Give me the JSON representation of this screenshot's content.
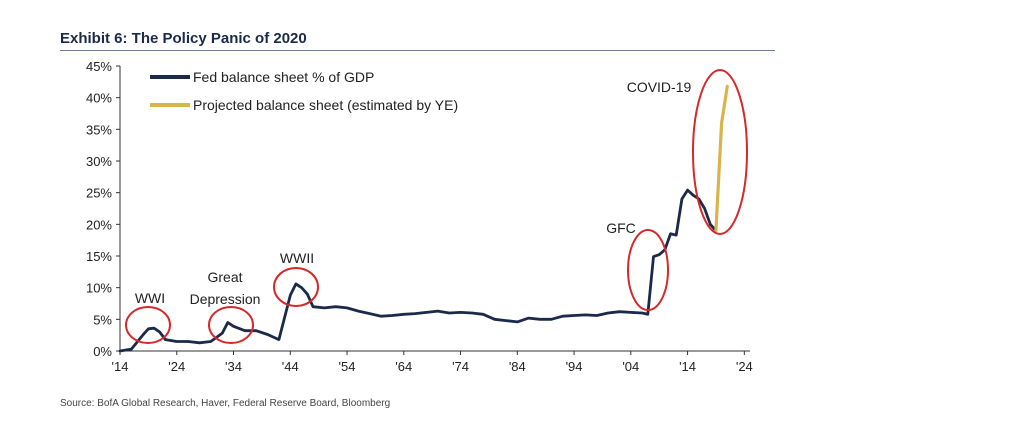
{
  "title": "Exhibit 6: The Policy Panic of 2020",
  "source": "Source: BofA Global Research, Haver, Federal Reserve Board, Bloomberg",
  "colors": {
    "actual": "#1b2a4a",
    "projected": "#d9b44a",
    "circle": "#d42a2a",
    "axis": "#333333"
  },
  "chart_data": {
    "type": "line",
    "title": "Exhibit 6: The Policy Panic of 2020",
    "xlabel": "",
    "ylabel": "",
    "xlim": [
      1914,
      2025
    ],
    "ylim": [
      0,
      45
    ],
    "y_ticks": [
      "0%",
      "5%",
      "10%",
      "15%",
      "20%",
      "25%",
      "30%",
      "35%",
      "40%",
      "45%"
    ],
    "y_tick_values": [
      0,
      5,
      10,
      15,
      20,
      25,
      30,
      35,
      40,
      45
    ],
    "x_ticks": [
      "'14",
      "'24",
      "'34",
      "'44",
      "'54",
      "'64",
      "'74",
      "'84",
      "'94",
      "'04",
      "'14",
      "'24"
    ],
    "x_tick_values": [
      1914,
      1924,
      1934,
      1944,
      1954,
      1964,
      1974,
      1984,
      1994,
      2004,
      2014,
      2024
    ],
    "grid": false,
    "legend_position": "top-left",
    "series": [
      {
        "name": "Fed balance sheet % of GDP",
        "x": [
          1914,
          1916,
          1918,
          1919,
          1920,
          1921,
          1922,
          1924,
          1926,
          1928,
          1930,
          1932,
          1933,
          1934,
          1936,
          1938,
          1940,
          1942,
          1944,
          1945,
          1946,
          1947,
          1948,
          1950,
          1952,
          1954,
          1956,
          1958,
          1960,
          1962,
          1964,
          1966,
          1968,
          1970,
          1972,
          1974,
          1976,
          1978,
          1980,
          1982,
          1984,
          1986,
          1988,
          1990,
          1992,
          1994,
          1996,
          1998,
          2000,
          2002,
          2004,
          2006,
          2007,
          2008,
          2009,
          2010,
          2011,
          2012,
          2013,
          2014,
          2015,
          2016,
          2017,
          2018,
          2019
        ],
        "y": [
          0,
          0.3,
          2.5,
          3.5,
          3.6,
          3.0,
          1.8,
          1.5,
          1.5,
          1.3,
          1.5,
          2.8,
          4.5,
          3.9,
          3.2,
          3.2,
          2.6,
          1.8,
          8.8,
          10.6,
          10.0,
          9.0,
          7.0,
          6.8,
          7.0,
          6.8,
          6.3,
          5.9,
          5.5,
          5.6,
          5.8,
          5.9,
          6.1,
          6.3,
          6.0,
          6.1,
          6.0,
          5.8,
          5.0,
          4.8,
          4.6,
          5.2,
          5.0,
          5.0,
          5.5,
          5.6,
          5.7,
          5.6,
          6.0,
          6.2,
          6.1,
          6.0,
          5.8,
          14.9,
          15.2,
          16.0,
          18.5,
          18.3,
          24.0,
          25.4,
          24.6,
          24.0,
          22.5,
          20.0,
          19.0
        ]
      },
      {
        "name": "Projected balance sheet (estimated by YE)",
        "x": [
          2019,
          2020,
          2021
        ],
        "y": [
          19.0,
          36.0,
          41.8
        ]
      }
    ],
    "annotations": [
      {
        "label": "WWI",
        "x": 1919,
        "y": 3.6
      },
      {
        "label": "Great Depression",
        "x": 1933,
        "y": 4.2
      },
      {
        "label": "WWII",
        "x": 1945,
        "y": 10.5
      },
      {
        "label": "GFC",
        "x": 2008,
        "y": 10.5
      },
      {
        "label": "COVID-19",
        "x": 2020,
        "y": 30.0
      }
    ]
  }
}
